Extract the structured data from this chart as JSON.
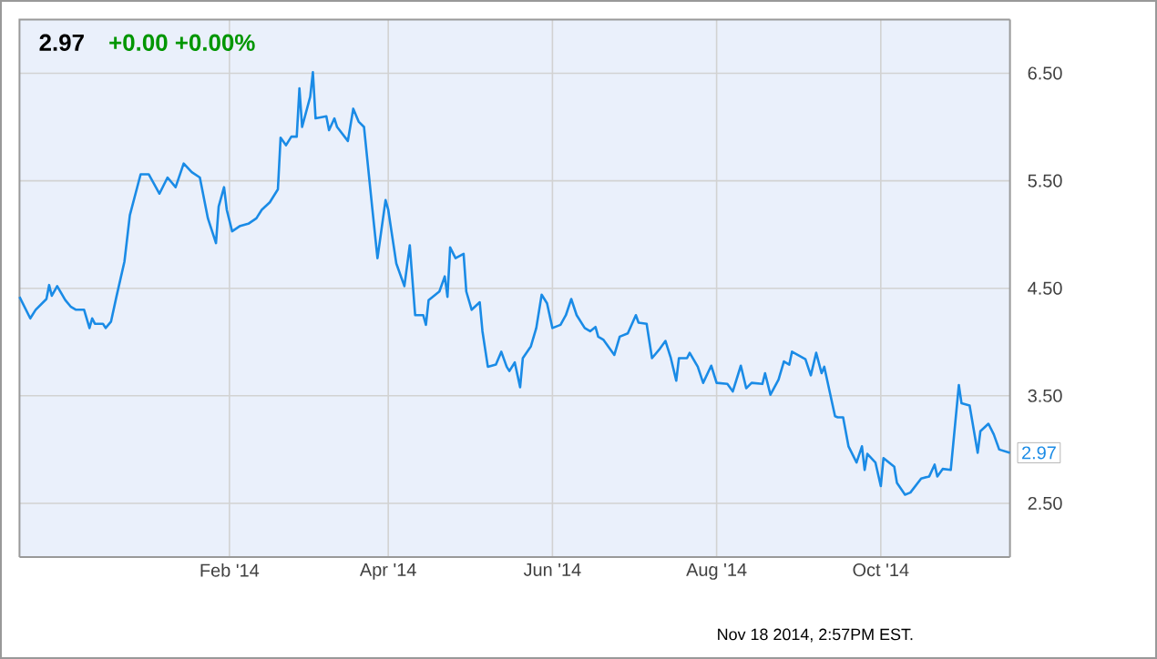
{
  "chart_data": {
    "type": "line",
    "title": "2.97",
    "subtitle": "+0.00  +0.00%",
    "x": [
      "2013-11-15",
      "2013-11-19",
      "2013-11-21",
      "2013-11-25",
      "2013-11-26",
      "2013-11-27",
      "2013-11-29",
      "2013-12-02",
      "2013-12-04",
      "2013-12-06",
      "2013-12-09",
      "2013-12-11",
      "2013-12-12",
      "2013-12-13",
      "2013-12-16",
      "2013-12-17",
      "2013-12-19",
      "2013-12-21",
      "2013-12-24",
      "2013-12-26",
      "2013-12-30",
      "2014-01-02",
      "2014-01-06",
      "2014-01-09",
      "2014-01-12",
      "2014-01-15",
      "2014-01-18",
      "2014-01-21",
      "2014-01-24",
      "2014-01-27",
      "2014-01-28",
      "2014-01-30",
      "2014-01-31",
      "2014-02-02",
      "2014-02-05",
      "2014-02-08",
      "2014-02-11",
      "2014-02-13",
      "2014-02-16",
      "2014-02-19",
      "2014-02-20",
      "2014-02-22",
      "2014-02-24",
      "2014-02-26",
      "2014-02-27",
      "2014-02-28",
      "2014-03-03",
      "2014-03-04",
      "2014-03-05",
      "2014-03-09",
      "2014-03-10",
      "2014-03-12",
      "2014-03-13",
      "2014-03-17",
      "2014-03-19",
      "2014-03-21",
      "2014-03-23",
      "2014-03-26",
      "2014-03-28",
      "2014-03-31",
      "2014-04-01",
      "2014-04-04",
      "2014-04-07",
      "2014-04-09",
      "2014-04-11",
      "2014-04-14",
      "2014-04-15",
      "2014-04-16",
      "2014-04-20",
      "2014-04-22",
      "2014-04-23",
      "2014-04-24",
      "2014-04-26",
      "2014-04-29",
      "2014-04-30",
      "2014-05-02",
      "2014-05-05",
      "2014-05-06",
      "2014-05-08",
      "2014-05-11",
      "2014-05-13",
      "2014-05-15",
      "2014-05-16",
      "2014-05-18",
      "2014-05-20",
      "2014-05-21",
      "2014-05-24",
      "2014-05-26",
      "2014-05-28",
      "2014-05-30",
      "2014-06-01",
      "2014-06-04",
      "2014-06-06",
      "2014-06-08",
      "2014-06-10",
      "2014-06-13",
      "2014-06-15",
      "2014-06-17",
      "2014-06-18",
      "2014-06-20",
      "2014-06-24",
      "2014-06-26",
      "2014-06-29",
      "2014-07-02",
      "2014-07-03",
      "2014-07-06",
      "2014-07-08",
      "2014-07-11",
      "2014-07-13",
      "2014-07-15",
      "2014-07-17",
      "2014-07-18",
      "2014-07-21",
      "2014-07-22",
      "2014-07-25",
      "2014-07-27",
      "2014-07-30",
      "2014-08-01",
      "2014-08-05",
      "2014-08-07",
      "2014-08-10",
      "2014-08-12",
      "2014-08-14",
      "2014-08-18",
      "2014-08-19",
      "2014-08-21",
      "2014-08-24",
      "2014-08-26",
      "2014-08-28",
      "2014-08-29",
      "2014-09-03",
      "2014-09-05",
      "2014-09-07",
      "2014-09-09",
      "2014-09-10",
      "2014-09-14",
      "2014-09-15",
      "2014-09-17",
      "2014-09-19",
      "2014-09-22",
      "2014-09-24",
      "2014-09-25",
      "2014-09-26",
      "2014-09-29",
      "2014-10-01",
      "2014-10-02",
      "2014-10-06",
      "2014-10-07",
      "2014-10-10",
      "2014-10-12",
      "2014-10-16",
      "2014-10-19",
      "2014-10-21",
      "2014-10-22",
      "2014-10-24",
      "2014-10-27",
      "2014-10-30",
      "2014-10-31",
      "2014-11-03",
      "2014-11-06",
      "2014-11-07",
      "2014-11-10",
      "2014-11-12",
      "2014-11-14",
      "2014-11-18"
    ],
    "values": [
      4.42,
      4.22,
      4.3,
      4.4,
      4.53,
      4.43,
      4.52,
      4.39,
      4.33,
      4.3,
      4.3,
      4.13,
      4.22,
      4.17,
      4.17,
      4.13,
      4.19,
      4.42,
      4.75,
      5.18,
      5.56,
      5.56,
      5.38,
      5.53,
      5.44,
      5.66,
      5.58,
      5.53,
      5.15,
      4.92,
      5.26,
      5.44,
      5.23,
      5.03,
      5.08,
      5.1,
      5.15,
      5.23,
      5.3,
      5.42,
      5.9,
      5.83,
      5.91,
      5.91,
      6.36,
      6.0,
      6.28,
      6.51,
      6.08,
      6.1,
      5.97,
      6.08,
      6.0,
      5.87,
      6.17,
      6.05,
      6.0,
      5.26,
      4.78,
      5.32,
      5.23,
      4.73,
      4.52,
      4.9,
      4.25,
      4.25,
      4.16,
      4.39,
      4.47,
      4.61,
      4.42,
      4.88,
      4.78,
      4.82,
      4.47,
      4.3,
      4.37,
      4.1,
      3.77,
      3.79,
      3.91,
      3.77,
      3.73,
      3.81,
      3.58,
      3.85,
      3.96,
      4.13,
      4.44,
      4.36,
      4.13,
      4.16,
      4.25,
      4.4,
      4.25,
      4.13,
      4.1,
      4.14,
      4.05,
      4.02,
      3.88,
      4.05,
      4.08,
      4.25,
      4.18,
      4.17,
      3.85,
      3.94,
      4.01,
      3.85,
      3.64,
      3.85,
      3.85,
      3.9,
      3.77,
      3.62,
      3.78,
      3.62,
      3.61,
      3.54,
      3.78,
      3.57,
      3.62,
      3.61,
      3.71,
      3.51,
      3.65,
      3.82,
      3.79,
      3.91,
      3.84,
      3.69,
      3.9,
      3.71,
      3.77,
      3.31,
      3.3,
      3.3,
      3.03,
      2.88,
      3.03,
      2.81,
      2.96,
      2.88,
      2.66,
      2.92,
      2.84,
      2.69,
      2.58,
      2.6,
      2.73,
      2.75,
      2.86,
      2.75,
      2.82,
      2.81,
      3.6,
      3.43,
      3.41,
      2.97,
      3.17,
      3.24,
      3.14,
      3.0,
      2.97
    ],
    "color": "#1a8be6",
    "xlim": [
      "2013-11-15",
      "2014-11-18"
    ],
    "xticks": [
      {
        "value": "2014-02-01",
        "label": "Feb '14"
      },
      {
        "value": "2014-04-01",
        "label": "Apr '14"
      },
      {
        "value": "2014-06-01",
        "label": "Jun '14"
      },
      {
        "value": "2014-08-01",
        "label": "Aug '14"
      },
      {
        "value": "2014-10-01",
        "label": "Oct '14"
      }
    ],
    "ylim": [
      2.0,
      7.0
    ],
    "yticks": [
      {
        "value": 2.5,
        "label": "2.50"
      },
      {
        "value": 3.5,
        "label": "3.50"
      },
      {
        "value": 4.5,
        "label": "4.50"
      },
      {
        "value": 5.5,
        "label": "5.50"
      },
      {
        "value": 6.5,
        "label": "6.50"
      }
    ],
    "grid": true,
    "annotations": [
      {
        "text": "2.97",
        "x": "2014-11-18",
        "y": 2.97
      },
      "Nov 18 2014, 2:57PM EST."
    ]
  }
}
